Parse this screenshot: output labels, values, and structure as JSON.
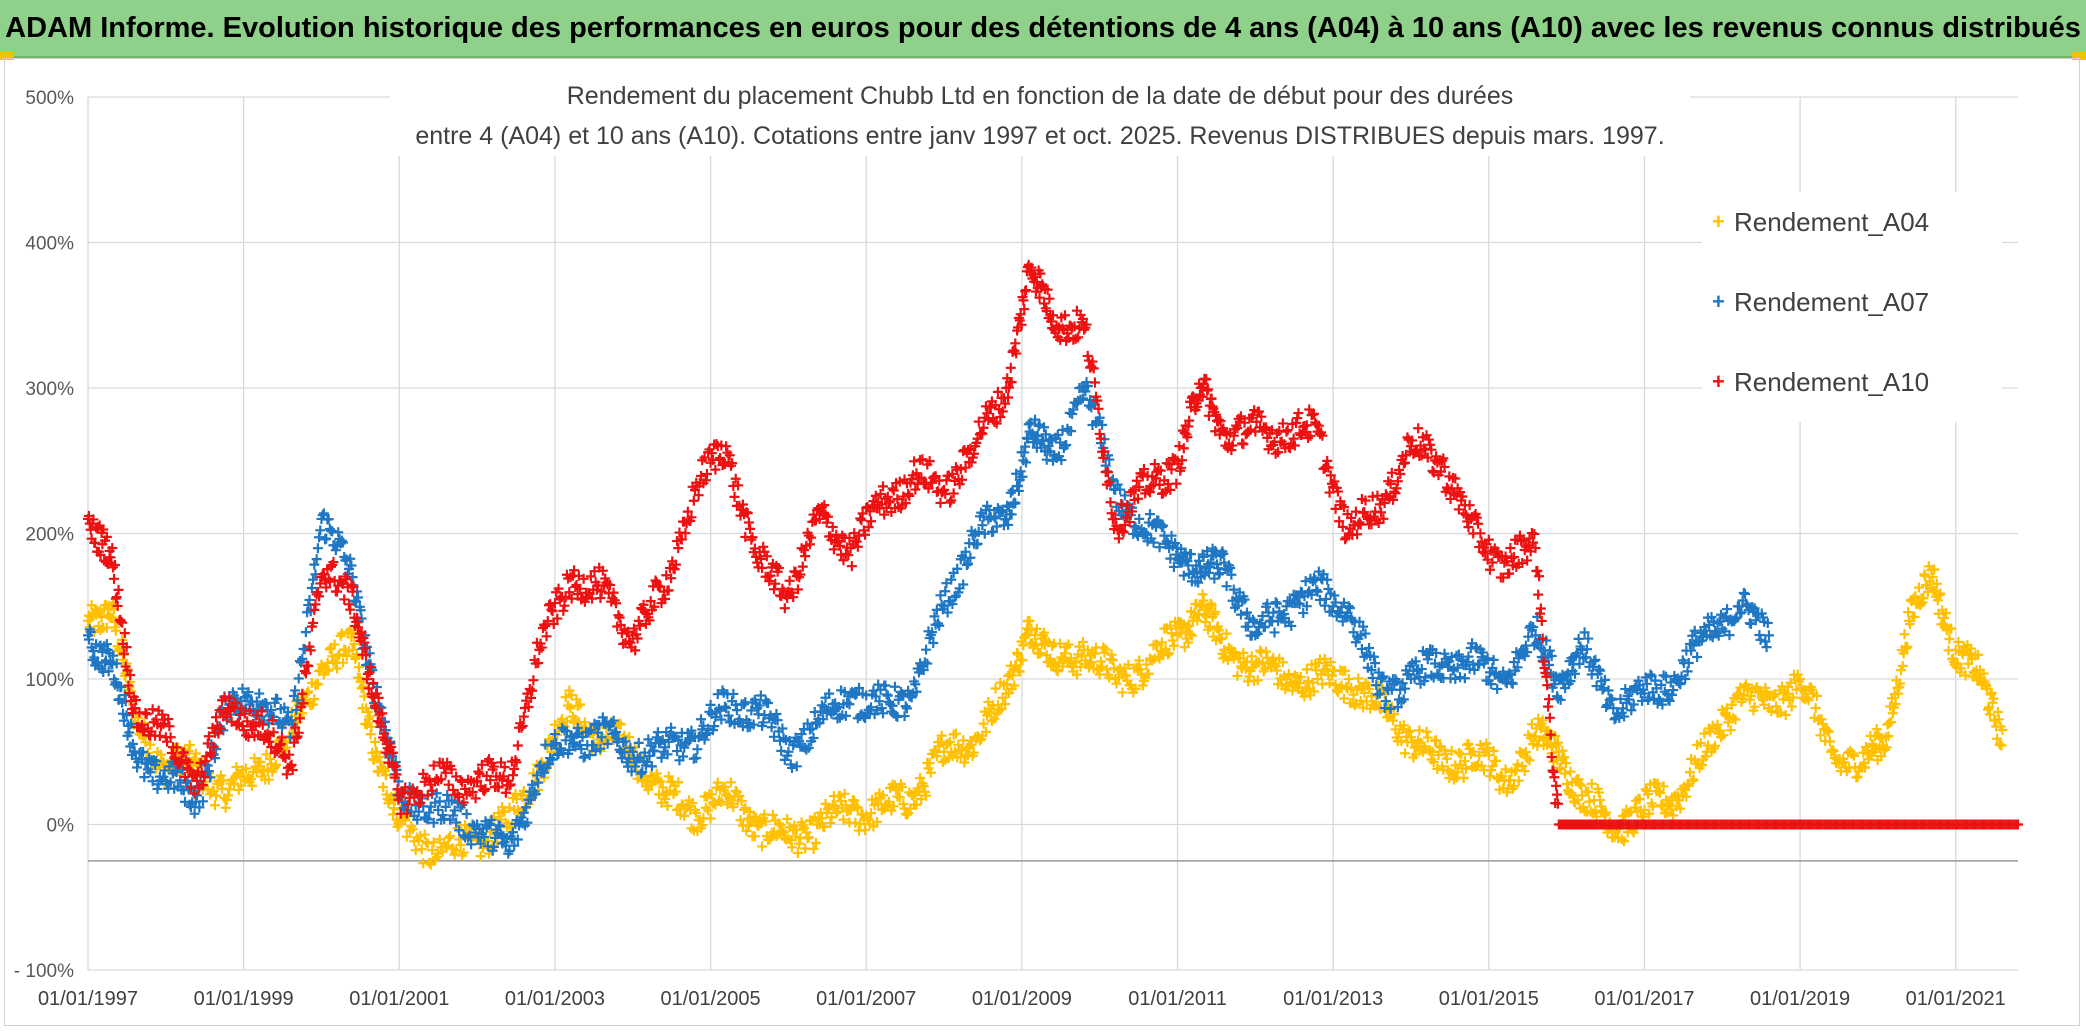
{
  "banner": {
    "title": "ADAM Informe. Evolution historique des performances en euros pour des détentions de 4 ans (A04) à 10 ans (A10) avec les revenus connus distribués"
  },
  "chart_data": {
    "type": "scatter",
    "title_line1": "Rendement du placement Chubb Ltd en fonction de la date de début pour des durées",
    "title_line2": "entre 4 (A04) et 10 ans (A10). Cotations entre janv 1997 et oct. 2025. Revenus DISTRIBUES depuis mars. 1997.",
    "xlabel": "",
    "ylabel": "",
    "xlim": [
      1997.0,
      2021.8
    ],
    "ylim": [
      -100,
      500
    ],
    "y_ticks": [
      -100,
      0,
      100,
      200,
      300,
      400,
      500
    ],
    "y_tick_labels": [
      "- 100%",
      "0%",
      "100%",
      "200%",
      "300%",
      "400%",
      "500%"
    ],
    "x_ticks": [
      1997,
      1999,
      2001,
      2003,
      2005,
      2007,
      2009,
      2011,
      2013,
      2015,
      2017,
      2019,
      2021
    ],
    "x_tick_labels": [
      "01/01/1997",
      "01/01/1999",
      "01/01/2001",
      "01/01/2003",
      "01/01/2005",
      "01/01/2007",
      "01/01/2009",
      "01/01/2011",
      "01/01/2013",
      "01/01/2015",
      "01/01/2017",
      "01/01/2019",
      "01/01/2021"
    ],
    "reference_line_y": -25,
    "legend_position": "top-right",
    "grid": true,
    "series": [
      {
        "name": "Rendement_A04",
        "color": "#ffc000",
        "x": [
          1997.0,
          1997.3,
          1997.6,
          1998.0,
          1998.4,
          1998.8,
          1999.2,
          1999.6,
          2000.0,
          2000.4,
          2000.7,
          2001.0,
          2001.5,
          2002.0,
          2002.4,
          2002.8,
          2003.2,
          2003.6,
          2004.0,
          2004.4,
          2004.8,
          2005.2,
          2005.6,
          2006.0,
          2006.4,
          2006.8,
          2007.2,
          2007.6,
          2008.0,
          2008.4,
          2008.8,
          2009.1,
          2009.4,
          2009.8,
          2010.2,
          2010.6,
          2011.0,
          2011.3,
          2011.6,
          2012.0,
          2012.4,
          2012.8,
          2013.2,
          2013.6,
          2014.0,
          2014.4,
          2014.8,
          2015.2,
          2015.6,
          2015.9,
          2016.2,
          2016.6,
          2017.0,
          2017.4,
          2017.8,
          2018.2,
          2018.6,
          2019.0,
          2019.4,
          2019.8,
          2020.1,
          2020.4,
          2020.7,
          2021.0,
          2021.3,
          2021.6
        ],
        "y": [
          140,
          150,
          70,
          40,
          40,
          20,
          40,
          60,
          110,
          120,
          50,
          0,
          -20,
          -10,
          0,
          40,
          80,
          60,
          50,
          20,
          10,
          20,
          0,
          -10,
          0,
          10,
          10,
          20,
          50,
          60,
          90,
          140,
          110,
          120,
          100,
          110,
          130,
          150,
          120,
          110,
          100,
          100,
          100,
          80,
          60,
          40,
          50,
          30,
          60,
          50,
          20,
          0,
          10,
          20,
          50,
          90,
          80,
          100,
          50,
          40,
          60,
          140,
          170,
          120,
          100,
          65
        ]
      },
      {
        "name": "Rendement_A07",
        "color": "#1f77c4",
        "x": [
          1997.0,
          1997.3,
          1997.6,
          1998.0,
          1998.4,
          1998.8,
          1999.2,
          1999.6,
          2000.0,
          2000.4,
          2000.7,
          2001.0,
          2001.5,
          2002.0,
          2002.4,
          2002.8,
          2003.2,
          2003.6,
          2004.0,
          2004.4,
          2004.8,
          2005.2,
          2005.6,
          2006.0,
          2006.4,
          2006.8,
          2007.2,
          2007.6,
          2008.0,
          2008.4,
          2008.8,
          2009.1,
          2009.4,
          2009.8,
          2010.2,
          2010.6,
          2011.0,
          2011.3,
          2011.6,
          2012.0,
          2012.4,
          2012.8,
          2013.2,
          2013.6,
          2014.0,
          2014.4,
          2014.8,
          2015.2,
          2015.6,
          2015.9,
          2016.2,
          2016.6,
          2017.0,
          2017.4,
          2017.8,
          2018.2,
          2018.6
        ],
        "y": [
          130,
          110,
          50,
          30,
          20,
          80,
          90,
          60,
          210,
          170,
          90,
          20,
          10,
          0,
          -20,
          40,
          60,
          60,
          50,
          50,
          60,
          80,
          80,
          50,
          70,
          90,
          80,
          90,
          150,
          200,
          210,
          270,
          250,
          300,
          230,
          200,
          190,
          170,
          180,
          130,
          150,
          160,
          150,
          90,
          100,
          110,
          110,
          100,
          130,
          100,
          120,
          80,
          90,
          100,
          130,
          150,
          130
        ]
      },
      {
        "name": "Rendement_A10",
        "color": "#ee1111",
        "x": [
          1997.0,
          1997.3,
          1997.6,
          1998.0,
          1998.4,
          1998.8,
          1999.2,
          1999.6,
          2000.0,
          2000.4,
          2000.7,
          2001.0,
          2001.5,
          2002.0,
          2002.4,
          2002.8,
          2003.2,
          2003.6,
          2004.0,
          2004.4,
          2004.8,
          2005.2,
          2005.6,
          2006.0,
          2006.4,
          2006.8,
          2007.2,
          2007.6,
          2008.0,
          2008.4,
          2008.8,
          2009.1,
          2009.4,
          2009.8,
          2010.2,
          2010.6,
          2011.0,
          2011.3,
          2011.6,
          2012.0,
          2012.4,
          2012.8,
          2013.2,
          2013.6,
          2014.0,
          2014.4,
          2014.8,
          2015.2,
          2015.6,
          2015.9,
          2016.4,
          2017.0,
          2017.6,
          2018.2,
          2018.8,
          2019.4,
          2020.0,
          2020.6,
          2021.2,
          2021.8
        ],
        "y": [
          210,
          180,
          80,
          60,
          30,
          80,
          70,
          40,
          170,
          160,
          80,
          20,
          30,
          30,
          30,
          120,
          170,
          160,
          130,
          160,
          230,
          260,
          180,
          160,
          210,
          190,
          220,
          240,
          230,
          260,
          300,
          380,
          350,
          340,
          210,
          230,
          250,
          300,
          270,
          270,
          270,
          270,
          200,
          220,
          260,
          250,
          200,
          180,
          190,
          0,
          0,
          0,
          0,
          0,
          0,
          0,
          0,
          0,
          0,
          0
        ]
      }
    ]
  }
}
